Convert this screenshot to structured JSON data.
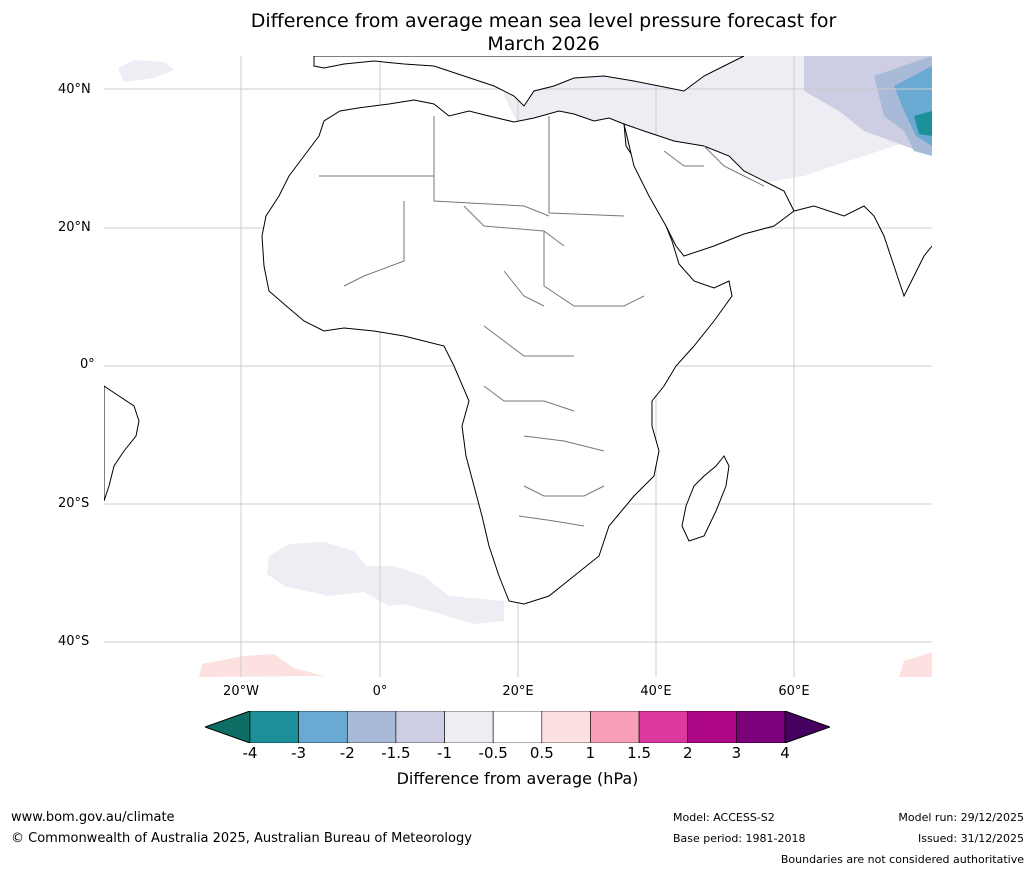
{
  "title": "Difference from average mean sea level pressure forecast for",
  "title_line2": "March 2026",
  "lat_labels": [
    "40°N",
    "20°N",
    "0°",
    "20°S",
    "40°S"
  ],
  "lon_labels": [
    "20°W",
    "0°",
    "20°E",
    "40°E",
    "60°E"
  ],
  "colorbar": {
    "ticks": [
      "-4",
      "-3",
      "-2",
      "-1.5",
      "-1",
      "-0.5",
      "0.5",
      "1",
      "1.5",
      "2",
      "3",
      "4"
    ],
    "colors": [
      "#0e6e65",
      "#1c9098",
      "#6aaad2",
      "#a8bad8",
      "#cdcde4",
      "#efecf4",
      "#ffffff",
      "#fde0e0",
      "#f79fb8",
      "#dc3a9e",
      "#ae0786",
      "#7d007b",
      "#46005f"
    ],
    "label": "Difference from average (hPa)"
  },
  "footer": {
    "website": "www.bom.gov.au/climate",
    "copyright": "© Commonwealth of Australia 2025, Australian Bureau of Meteorology",
    "model": "Model: ACCESS-S2",
    "base_period": "Base period: 1981-2018",
    "model_run": "Model run: 29/12/2025",
    "issued": "Issued: 31/12/2025",
    "disclaimer": "Boundaries are not considered authoritative"
  }
}
